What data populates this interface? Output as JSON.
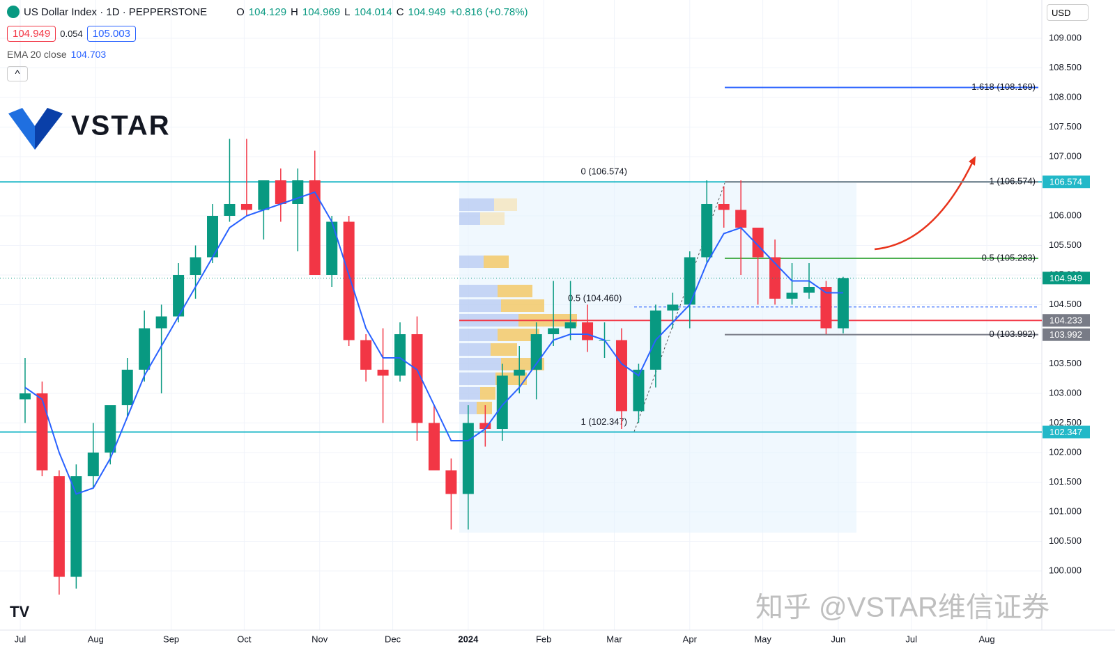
{
  "header": {
    "title": "US Dollar Index · 1D · PEPPERSTONE",
    "o": "O",
    "open": "104.129",
    "h": "H",
    "high": "104.969",
    "l": "L",
    "low": "104.014",
    "c": "C",
    "close": "104.949",
    "change": "+0.816 (+0.78%)",
    "bid": "104.949",
    "spread": "0.054",
    "ask": "105.003",
    "currency": "USD",
    "logo": "VSTAR",
    "watermark": "知乎 @VSTAR维信证券"
  },
  "chart_data": {
    "type": "candlestick",
    "x": [
      2,
      9,
      16,
      23,
      30,
      37,
      44,
      51,
      58,
      65,
      72,
      79,
      86,
      93,
      100,
      107,
      114,
      121,
      128,
      135,
      142,
      149,
      156,
      163,
      170,
      177,
      184,
      191,
      198,
      205,
      212,
      219,
      226,
      233,
      240,
      247,
      254,
      261,
      268,
      275,
      282,
      289,
      296,
      303,
      310,
      317,
      324,
      331,
      338
    ],
    "open": [
      102.9,
      103.0,
      101.6,
      99.9,
      101.6,
      102.0,
      102.8,
      103.4,
      104.1,
      104.3,
      105.0,
      105.3,
      106.0,
      106.2,
      106.1,
      106.6,
      106.2,
      106.6,
      105.0,
      105.9,
      103.9,
      103.4,
      103.3,
      104.0,
      102.5,
      101.7,
      101.3,
      102.5,
      102.4,
      103.3,
      103.4,
      104.0,
      104.1,
      104.2,
      103.9,
      103.9,
      102.7,
      103.4,
      104.4,
      104.5,
      105.3,
      106.2,
      106.1,
      105.8,
      105.3,
      104.6,
      104.7,
      104.8,
      104.1
    ],
    "high": [
      103.6,
      103.2,
      101.7,
      101.8,
      102.5,
      102.8,
      103.6,
      104.4,
      104.5,
      105.2,
      105.5,
      106.2,
      107.3,
      107.3,
      106.6,
      106.8,
      106.8,
      107.1,
      106.0,
      106.0,
      104.0,
      104.1,
      104.2,
      104.3,
      102.8,
      101.9,
      102.8,
      102.8,
      103.5,
      103.8,
      104.2,
      104.9,
      104.9,
      104.5,
      104.2,
      104.1,
      103.5,
      104.5,
      104.7,
      105.4,
      106.6,
      106.5,
      106.6,
      105.8,
      105.6,
      105.2,
      105.2,
      104.9,
      104.969
    ],
    "low": [
      102.5,
      101.6,
      99.6,
      99.7,
      101.4,
      101.8,
      102.6,
      103.2,
      103.0,
      104.2,
      104.6,
      105.2,
      105.9,
      106.0,
      105.6,
      105.9,
      105.4,
      105.0,
      104.8,
      103.8,
      103.2,
      102.5,
      103.2,
      102.2,
      101.8,
      100.7,
      100.7,
      102.1,
      102.2,
      103.0,
      102.9,
      103.8,
      103.9,
      103.7,
      103.6,
      102.4,
      102.5,
      103.1,
      104.1,
      104.1,
      105.2,
      105.8,
      105.0,
      104.5,
      104.5,
      104.5,
      104.6,
      104.0,
      104.014
    ],
    "close": [
      103.0,
      101.7,
      99.9,
      101.6,
      102.0,
      102.8,
      103.4,
      104.1,
      104.3,
      105.0,
      105.3,
      106.0,
      106.2,
      106.1,
      106.6,
      106.2,
      106.6,
      105.0,
      105.9,
      103.9,
      103.4,
      103.3,
      104.0,
      102.5,
      101.7,
      101.3,
      102.5,
      102.4,
      103.3,
      103.4,
      104.0,
      104.1,
      104.2,
      103.9,
      103.9,
      102.7,
      103.4,
      104.4,
      104.5,
      105.3,
      106.2,
      106.1,
      105.8,
      105.3,
      104.6,
      104.7,
      104.8,
      104.1,
      104.949
    ],
    "up_color": "#089981",
    "down_color": "#f23645",
    "ema": {
      "name": "EMA 20 close",
      "value": 104.703,
      "color": "#2962ff",
      "values": [
        103.1,
        102.9,
        102.0,
        101.3,
        101.4,
        101.9,
        102.6,
        103.3,
        103.8,
        104.3,
        104.8,
        105.3,
        105.8,
        106.0,
        106.1,
        106.2,
        106.3,
        106.4,
        105.9,
        105.0,
        104.1,
        103.6,
        103.6,
        103.4,
        102.8,
        102.2,
        102.2,
        102.4,
        102.8,
        103.1,
        103.5,
        103.9,
        104.0,
        104.0,
        103.9,
        103.5,
        103.3,
        103.9,
        104.2,
        104.5,
        105.2,
        105.7,
        105.8,
        105.5,
        105.2,
        104.9,
        104.9,
        104.7,
        104.7
      ]
    },
    "xlim": [
      -8.3,
      419.6
    ],
    "xticks": [
      {
        "value": 0,
        "label": "Jul"
      },
      {
        "value": 31,
        "label": "Aug"
      },
      {
        "value": 62,
        "label": "Sep"
      },
      {
        "value": 92,
        "label": "Oct"
      },
      {
        "value": 123,
        "label": "Nov"
      },
      {
        "value": 153,
        "label": "Dec"
      },
      {
        "value": 184,
        "label": "2024"
      },
      {
        "value": 215,
        "label": "Feb"
      },
      {
        "value": 244,
        "label": "Mar"
      },
      {
        "value": 275,
        "label": "Apr"
      },
      {
        "value": 305,
        "label": "May"
      },
      {
        "value": 336,
        "label": "Jun"
      },
      {
        "value": 366,
        "label": "Jul"
      },
      {
        "value": 397,
        "label": "Aug"
      }
    ],
    "ylim": [
      99.0,
      109.647
    ],
    "yticks": [
      {
        "value": 100,
        "label": "100.000"
      },
      {
        "value": 100.5,
        "label": "100.500"
      },
      {
        "value": 101,
        "label": "101.000"
      },
      {
        "value": 101.5,
        "label": "101.500"
      },
      {
        "value": 102,
        "label": "102.000"
      },
      {
        "value": 102.5,
        "label": "102.500"
      },
      {
        "value": 103,
        "label": "103.000"
      },
      {
        "value": 103.5,
        "label": "103.500"
      },
      {
        "value": 104.5,
        "label": "104.500"
      },
      {
        "value": 105,
        "label": "105.000"
      },
      {
        "value": 105.5,
        "label": "105.500"
      },
      {
        "value": 106,
        "label": "106.000"
      },
      {
        "value": 107,
        "label": "107.000"
      },
      {
        "value": 107.5,
        "label": "107.500"
      },
      {
        "value": 108,
        "label": "108.000"
      },
      {
        "value": 108.5,
        "label": "108.500"
      },
      {
        "value": 109,
        "label": "109.000"
      }
    ],
    "grid": true,
    "levels": [
      {
        "value": 106.574,
        "color": "#22b8c8"
      },
      {
        "value": 102.347,
        "color": "#22b8c8"
      },
      {
        "value": 104.233,
        "color": "#f23645"
      }
    ],
    "annotations": [
      {
        "text": "0 (106.574)",
        "value": 106.574,
        "color": "#787b86"
      },
      {
        "text": "1 (102.347)",
        "value": 102.347,
        "color": "#787b86"
      },
      {
        "text": "0.5 (104.460)",
        "value": 104.46,
        "color": "#2962ff"
      },
      {
        "text": "1.618 (108.169)",
        "value": 108.169,
        "color": "#2962ff"
      },
      {
        "text": "1 (106.574)",
        "value": 106.574,
        "color": "#787b86"
      },
      {
        "text": "0.5 (105.283)",
        "value": 105.283,
        "color": "#4caf50"
      },
      {
        "text": "0 (103.992)",
        "value": 103.992,
        "color": "#787b86"
      }
    ],
    "price_tags": [
      {
        "value": 106.574,
        "color": "#22b8c8"
      },
      {
        "value": 104.949,
        "color": "#089981"
      },
      {
        "value": 104.233,
        "color": "#787b86"
      },
      {
        "value": 103.992,
        "color": "#787b86"
      },
      {
        "value": 102.347,
        "color": "#22b8c8"
      }
    ]
  }
}
